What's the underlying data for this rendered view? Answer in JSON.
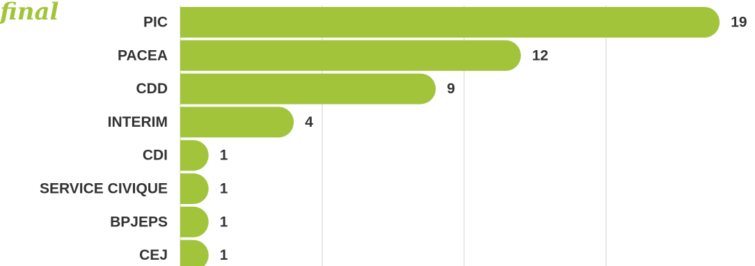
{
  "heading": {
    "partial_title": "final"
  },
  "colors": {
    "bar": "#a2c43a",
    "title": "#a2c43a",
    "text": "#333333",
    "grid": "#d0d0d0"
  },
  "chart_data": {
    "type": "bar",
    "orientation": "horizontal",
    "categories": [
      "PIC",
      "PACEA",
      "CDD",
      "INTERIM",
      "CDI",
      "SERVICE CIVIQUE",
      "BPJEPS",
      "CEJ"
    ],
    "values": [
      19,
      12,
      9,
      4,
      1,
      1,
      1,
      1
    ],
    "xlim": [
      0,
      20
    ],
    "gridlines": [
      5,
      10,
      15
    ],
    "data_labels": true,
    "grid": true
  }
}
